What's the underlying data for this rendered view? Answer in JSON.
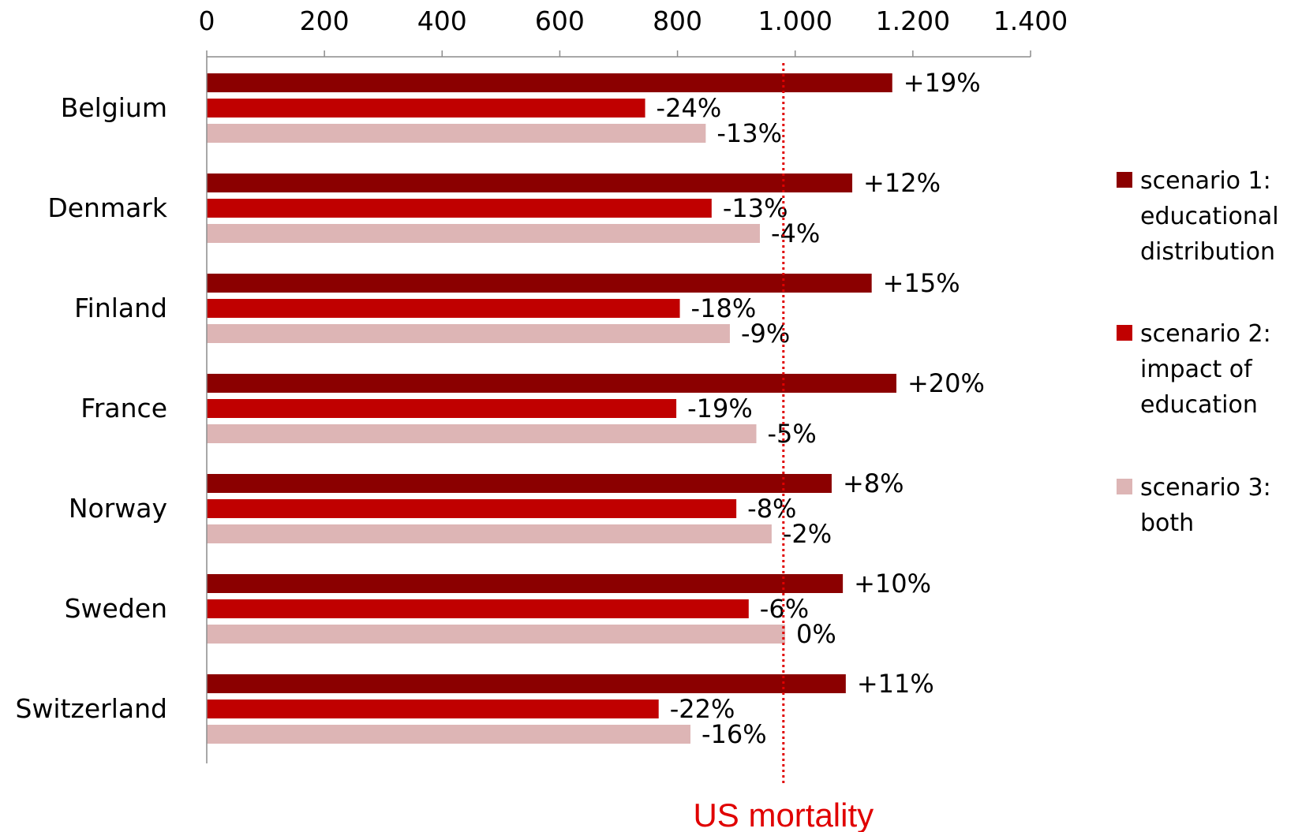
{
  "chart_data": {
    "type": "bar",
    "orientation": "horizontal",
    "categories": [
      "Belgium",
      "Denmark",
      "Finland",
      "France",
      "Norway",
      "Sweden",
      "Switzerland"
    ],
    "xlim": [
      0,
      1400
    ],
    "xticks": [
      0,
      200,
      400,
      600,
      800,
      1000,
      1200,
      1400
    ],
    "xtick_labels": [
      "0",
      "200",
      "400",
      "600",
      "800",
      "1.000",
      "1.200",
      "1.400"
    ],
    "axis_position": "top",
    "grid": false,
    "series": [
      {
        "name": "scenario 1: educational distribution",
        "legend_lines": [
          "scenario 1:",
          "educational",
          "distribution"
        ],
        "color": "#8b0000",
        "values": [
          1165,
          1097,
          1130,
          1172,
          1062,
          1081,
          1086
        ],
        "labels": [
          "+19%",
          "+12%",
          "+15%",
          "+20%",
          "+8%",
          "+10%",
          "+11%"
        ]
      },
      {
        "name": "scenario 2: impact of education",
        "legend_lines": [
          "scenario 2:",
          "impact of",
          "education"
        ],
        "color": "#c00000",
        "values": [
          745,
          858,
          804,
          798,
          900,
          921,
          768
        ],
        "labels": [
          "-24%",
          "-13%",
          "-18%",
          "-19%",
          "-8%",
          "-6%",
          "-22%"
        ]
      },
      {
        "name": "scenario 3: both",
        "legend_lines": [
          "scenario 3:",
          "both"
        ],
        "color": "#ddb5b5",
        "values": [
          848,
          940,
          889,
          934,
          960,
          983,
          822
        ],
        "labels": [
          "-13%",
          "-4%",
          "-9%",
          "-5%",
          "-2%",
          "0%",
          "-16%"
        ]
      }
    ],
    "reference_line": {
      "value": 980,
      "label": "US mortality",
      "color": "#e00000",
      "style": "dotted"
    },
    "legend_position": "right"
  }
}
